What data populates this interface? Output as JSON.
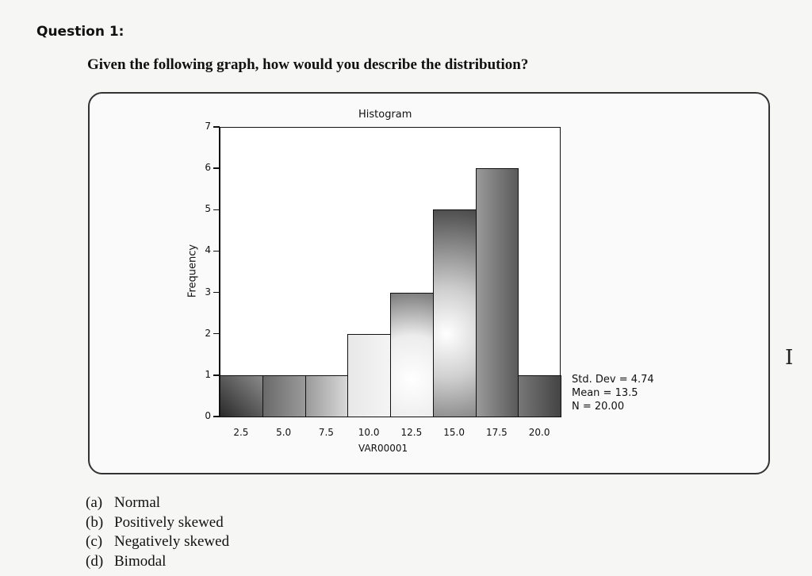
{
  "question": {
    "title": "Question 1:",
    "text": "Given the following graph, how would you describe the distribution?",
    "options": [
      {
        "letter": "(a)",
        "label": "Normal"
      },
      {
        "letter": "(b)",
        "label": "Positively skewed"
      },
      {
        "letter": "(c)",
        "label": "Negatively skewed"
      },
      {
        "letter": "(d)",
        "label": "Bimodal"
      }
    ]
  },
  "chart_data": {
    "type": "bar",
    "title": "Histogram",
    "xlabel": "VAR00001",
    "ylabel": "Frequency",
    "categories": [
      "2.5",
      "5.0",
      "7.5",
      "10.0",
      "12.5",
      "15.0",
      "17.5",
      "20.0"
    ],
    "values": [
      1,
      1,
      1,
      2,
      3,
      5,
      6,
      1
    ],
    "yticks": [
      "0",
      "1",
      "2",
      "3",
      "4",
      "5",
      "6",
      "7"
    ],
    "ylim": [
      0,
      7
    ],
    "grid": false,
    "stats": {
      "std_dev": "Std. Dev = 4.74",
      "mean": "Mean = 13.5",
      "n": "N = 20.00"
    },
    "bar_fills": [
      "linear-gradient(to top right,#2a2a2a,#8a8a8a)",
      "linear-gradient(to right,#6a6a6a,#9a9a9a)",
      "linear-gradient(to right,#9a9a9a,#d8d8d8)",
      "linear-gradient(to right,#e8e8e8,#f4f4f4)",
      "radial-gradient(circle at 50% 70%,#ffffff,#ececec 50%,#7a7a7a)",
      "radial-gradient(circle at 30% 60%,#ffffff,#cfcfcf 35%,#4a4a4a)",
      "linear-gradient(to right,#9a9a9a,#5a5a5a)",
      "linear-gradient(to right,#777,#444)"
    ]
  },
  "cursor": {
    "glyph": "I"
  }
}
